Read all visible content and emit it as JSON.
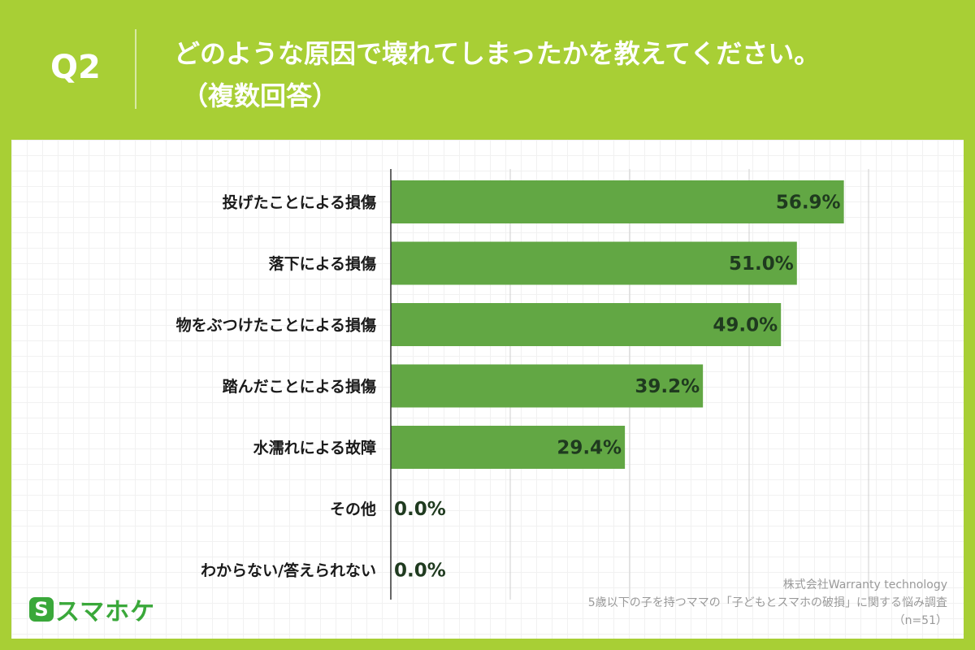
{
  "header": {
    "question_number": "Q2",
    "title_line1": "どのような原因で壊れてしまったかを教えてください。",
    "title_line2": "（複数回答）"
  },
  "chart_data": {
    "type": "bar",
    "orientation": "horizontal",
    "categories": [
      "投げたことによる損傷",
      "落下による損傷",
      "物をぶつけたことによる損傷",
      "踏んだことによる損傷",
      "水濡れによる故障",
      "その他",
      "わからない/答えられない"
    ],
    "values": [
      56.9,
      51.0,
      49.0,
      39.2,
      29.4,
      0.0,
      0.0
    ],
    "value_labels": [
      "56.9%",
      "51.0%",
      "49.0%",
      "39.2%",
      "29.4%",
      "0.0%",
      "0.0%"
    ],
    "xlim": [
      0,
      60
    ],
    "gridlines": [
      15,
      30,
      45,
      60
    ],
    "bar_color": "#62a744",
    "grid": true
  },
  "source": {
    "line1": "株式会社Warranty technology",
    "line2": "5歳以下の子を持つママの「子どもとスマホの破損」に関する悩み調査",
    "line3": "（n=51）"
  },
  "logo": {
    "mark": "S",
    "text": "スマホケ"
  },
  "colors": {
    "background": "#a8cf35",
    "bar": "#62a744",
    "logo": "#3aa83a"
  }
}
